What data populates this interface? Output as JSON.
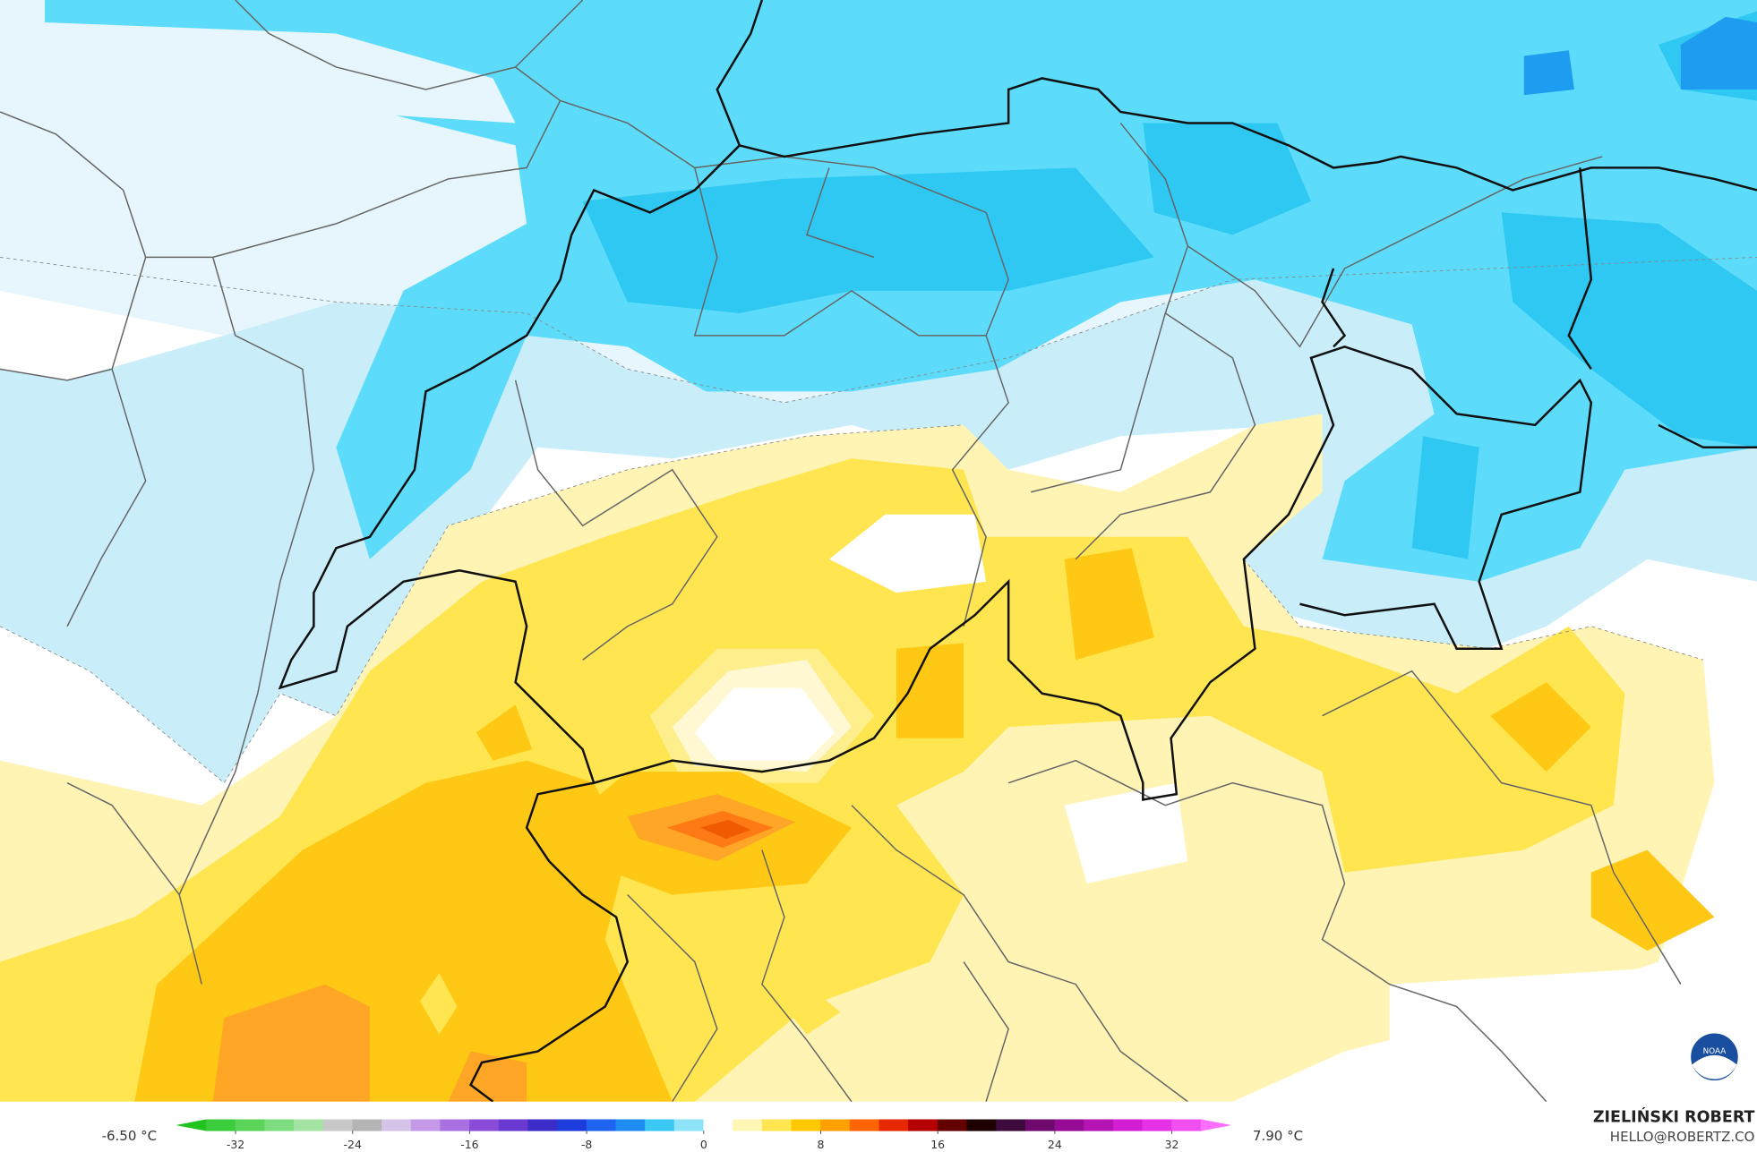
{
  "map": {
    "colorbar": {
      "lim": [
        -36,
        36
      ],
      "step": 2,
      "colors": [
        "#1fc41f",
        "#3ccd3c",
        "#5ad55a",
        "#7ddc7d",
        "#a5e3a5",
        "#c8c8c8",
        "#b4b4b4",
        "#d4c4e8",
        "#c49ae8",
        "#a870e0",
        "#8a4cd8",
        "#6a3ad0",
        "#3c2cc8",
        "#1e3cdc",
        "#1e64f0",
        "#1e8cf0",
        "#3cc8f5",
        "#8de3f8",
        "#ffffff",
        "#fff5b4",
        "#ffe650",
        "#ffc800",
        "#ffa000",
        "#ff6400",
        "#e62800",
        "#b40000",
        "#640000",
        "#1e0000",
        "#3c0a3c",
        "#6e0a6e",
        "#960a96",
        "#b414b4",
        "#d21ed2",
        "#e632e6",
        "#f050f0",
        "#ff6eff"
      ],
      "ticks": [
        -32,
        -24,
        -16,
        -8,
        0,
        8,
        16,
        24,
        32
      ],
      "min_label": "-6.50 °C",
      "max_label": "7.90 °C"
    },
    "credit": {
      "name": "ZIELIŃSKI ROBERT",
      "contact": "HELLO@ROBERTZ.CO"
    },
    "logo": "NOAA"
  }
}
